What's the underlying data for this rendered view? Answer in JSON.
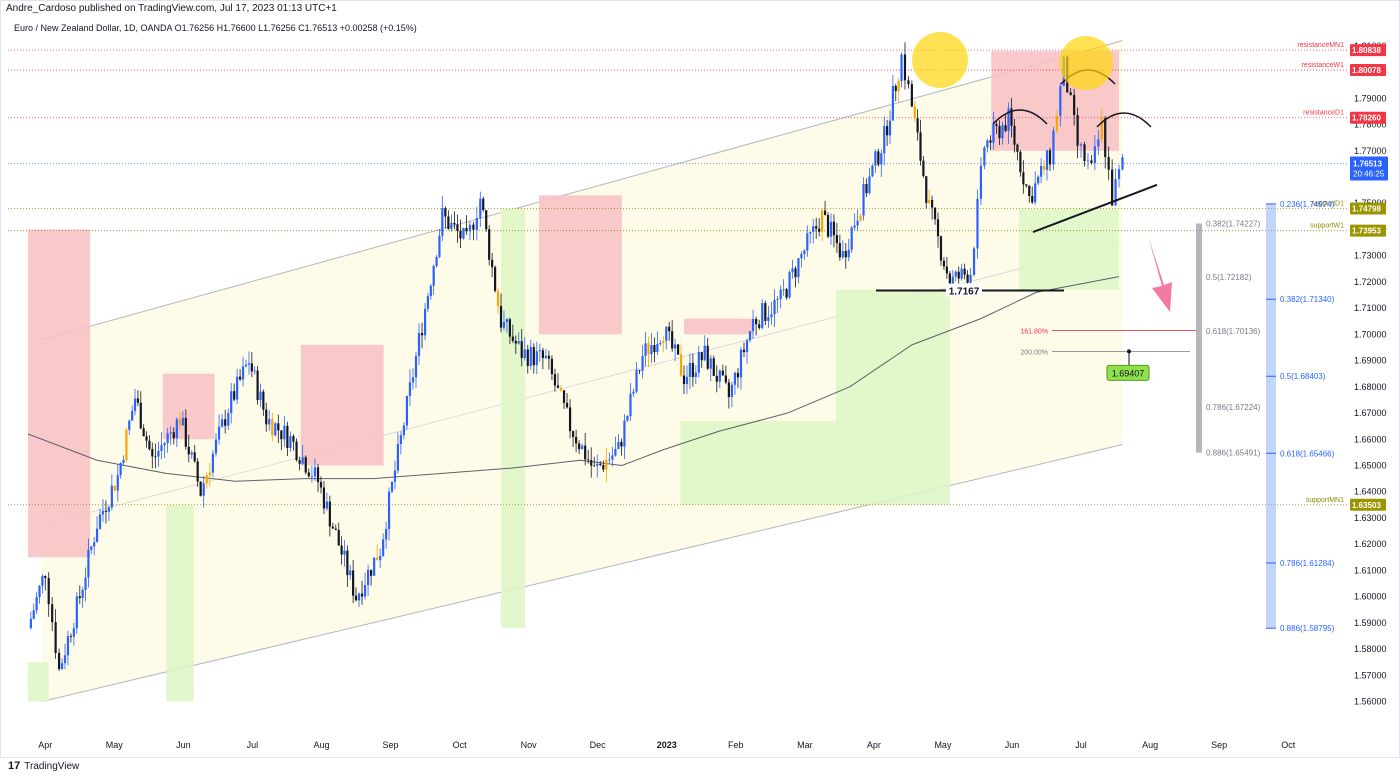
{
  "header": {
    "publisher": "Andre_Cardoso published on TradingView.com, Jul 17, 2023 01:13 UTC+1",
    "symbol_line": "Euro / New Zealand Dollar, 1D, OANDA  O1.76256  H1.76600  L1.76256  C1.76513  +0.00258 (+0.15%)"
  },
  "footer": {
    "brand": "TradingView"
  },
  "colors": {
    "up": "#2962ff",
    "down": "#131722",
    "orange": "#f7a600",
    "resistance": "#f23645",
    "support": "#8f8a00",
    "red_zone": "#f8c0c3",
    "green_zone": "#ddf6c4",
    "channel_fill": "#fffbe9",
    "last_price": "#2962ff",
    "ma": "#5d606b"
  },
  "chart_data": {
    "type": "candlestick",
    "symbol": "EURNZD",
    "timeframe": "1D",
    "x_tick_labels": [
      "Apr",
      "May",
      "Jun",
      "Jul",
      "Aug",
      "Sep",
      "Oct",
      "Nov",
      "Dec",
      "2023",
      "Feb",
      "Mar",
      "Apr",
      "May",
      "Jun",
      "Jul",
      "Aug",
      "Sep",
      "Oct"
    ],
    "y_tick_labels": [
      "1.56000",
      "1.57000",
      "1.58000",
      "1.59000",
      "1.60000",
      "1.61000",
      "1.62000",
      "1.63000",
      "1.64000",
      "1.65000",
      "1.66000",
      "1.67000",
      "1.68000",
      "1.69000",
      "1.70000",
      "1.71000",
      "1.72000",
      "1.73000",
      "1.74000",
      "1.75000",
      "1.76000",
      "1.77000",
      "1.78000",
      "1.79000",
      "1.80000",
      "1.81000"
    ],
    "ylim": [
      1.548,
      1.813
    ],
    "xlim": [
      0,
      19
    ],
    "last_price": "1.76513",
    "countdown": "20:46:25",
    "price_path": [
      [
        0.0,
        1.588
      ],
      [
        0.25,
        1.61
      ],
      [
        0.45,
        1.572
      ],
      [
        0.75,
        1.6
      ],
      [
        1.0,
        1.628
      ],
      [
        1.3,
        1.646
      ],
      [
        1.55,
        1.676
      ],
      [
        1.8,
        1.652
      ],
      [
        2.2,
        1.668
      ],
      [
        2.5,
        1.64
      ],
      [
        2.9,
        1.672
      ],
      [
        3.2,
        1.69
      ],
      [
        3.45,
        1.668
      ],
      [
        3.8,
        1.66
      ],
      [
        4.2,
        1.644
      ],
      [
        4.5,
        1.62
      ],
      [
        4.75,
        1.6
      ],
      [
        5.1,
        1.618
      ],
      [
        5.4,
        1.66
      ],
      [
        5.75,
        1.71
      ],
      [
        6.0,
        1.745
      ],
      [
        6.35,
        1.735
      ],
      [
        6.55,
        1.752
      ],
      [
        6.85,
        1.705
      ],
      [
        7.15,
        1.693
      ],
      [
        7.5,
        1.69
      ],
      [
        7.85,
        1.665
      ],
      [
        8.2,
        1.648
      ],
      [
        8.55,
        1.656
      ],
      [
        8.9,
        1.692
      ],
      [
        9.2,
        1.702
      ],
      [
        9.5,
        1.684
      ],
      [
        9.8,
        1.692
      ],
      [
        10.15,
        1.676
      ],
      [
        10.5,
        1.705
      ],
      [
        10.9,
        1.713
      ],
      [
        11.2,
        1.73
      ],
      [
        11.5,
        1.745
      ],
      [
        11.8,
        1.73
      ],
      [
        12.1,
        1.753
      ],
      [
        12.4,
        1.775
      ],
      [
        12.65,
        1.806
      ],
      [
        12.8,
        1.787
      ],
      [
        13.05,
        1.748
      ],
      [
        13.35,
        1.72
      ],
      [
        13.65,
        1.724
      ],
      [
        13.85,
        1.772
      ],
      [
        14.2,
        1.782
      ],
      [
        14.5,
        1.752
      ],
      [
        14.8,
        1.768
      ],
      [
        15.0,
        1.802
      ],
      [
        15.2,
        1.772
      ],
      [
        15.4,
        1.762
      ],
      [
        15.55,
        1.78
      ],
      [
        15.7,
        1.752
      ],
      [
        15.85,
        1.765
      ]
    ],
    "price_lines": [
      {
        "label": "resistanceMN1",
        "value": "1.80838",
        "kind": "resistance"
      },
      {
        "label": "resistanceW1",
        "value": "1.80078",
        "kind": "resistance"
      },
      {
        "label": "resistanceD1",
        "value": "1.78260",
        "kind": "resistance"
      },
      {
        "label": "supportD1",
        "value": "1.74798",
        "kind": "support"
      },
      {
        "label": "supportW1",
        "value": "1.73953",
        "kind": "support"
      },
      {
        "label": "supportMN1",
        "value": "1.63503",
        "kind": "support"
      }
    ],
    "fib_inner": [
      {
        "label": "0.382(1.74227)",
        "value": 1.74227
      },
      {
        "label": "0.5(1.72182)",
        "value": 1.72182
      },
      {
        "label": "0.618(1.70136)",
        "value": 1.70136
      },
      {
        "label": "0.786(1.67224)",
        "value": 1.67224
      },
      {
        "label": "0.886(1.65491)",
        "value": 1.65491
      }
    ],
    "fib_outer": [
      {
        "label": "0.236(1.74974)",
        "value": 1.74974
      },
      {
        "label": "0.382(1.71340)",
        "value": 1.7134
      },
      {
        "label": "0.5(1.68403)",
        "value": 1.68403
      },
      {
        "label": "0.618(1.65466)",
        "value": 1.65466
      },
      {
        "label": "0.786(1.61284)",
        "value": 1.61284
      },
      {
        "label": "0.886(1.58795)",
        "value": 1.58795
      }
    ],
    "extensions": [
      {
        "label": "161.80%",
        "value": 1.7015
      },
      {
        "label": "200.00%",
        "value": 1.6935
      }
    ],
    "annotations": {
      "neckline_label": "1.7167",
      "target_label": "1.69407"
    }
  }
}
